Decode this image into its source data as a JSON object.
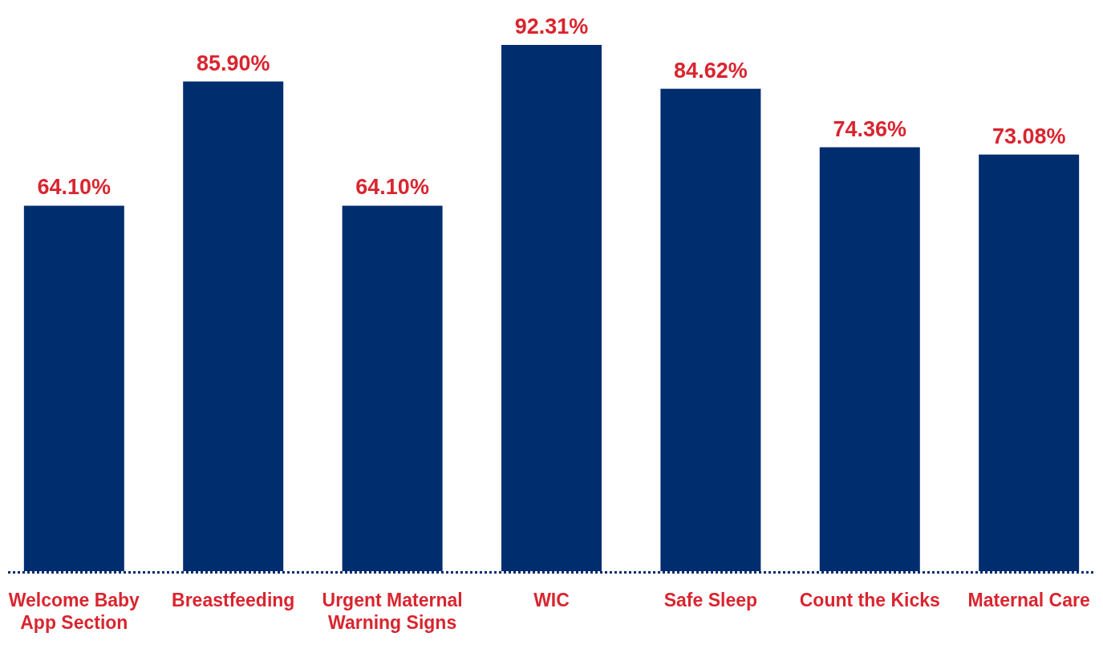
{
  "chart_data": {
    "type": "bar",
    "categories": [
      "Welcome Baby App Section",
      "Breastfeeding",
      "Urgent Maternal Warning Signs",
      "WIC",
      "Safe Sleep",
      "Count the Kicks",
      "Maternal Care"
    ],
    "values": [
      64.1,
      85.9,
      64.1,
      92.31,
      84.62,
      74.36,
      73.08
    ],
    "color": "#002d6e",
    "value_labels": [
      "64.10%",
      "85.90%",
      "64.10%",
      "92.31%",
      "84.62%",
      "74.36%",
      "73.08%"
    ]
  }
}
